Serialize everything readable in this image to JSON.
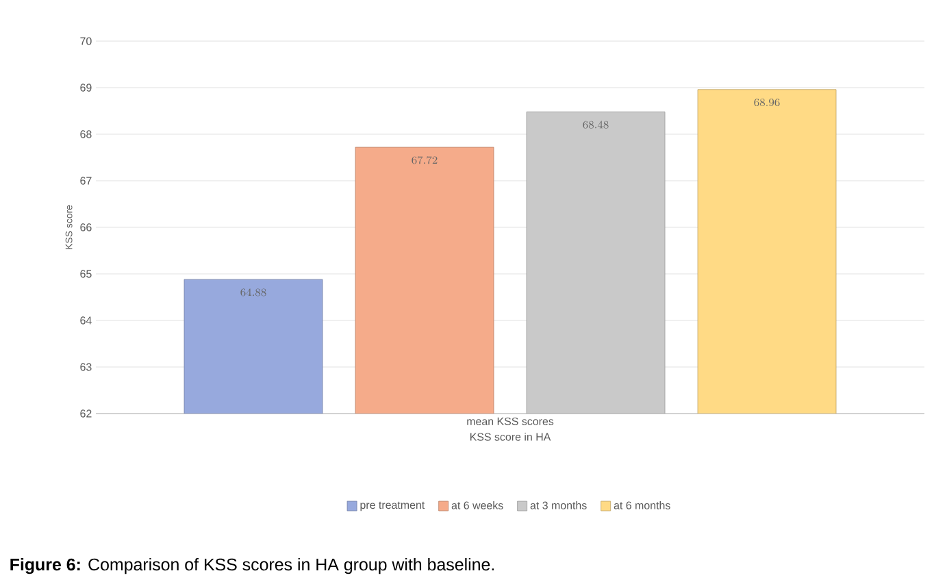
{
  "chart_data": {
    "type": "bar",
    "categories": [
      "mean KSS scores"
    ],
    "series": [
      {
        "name": "pre treatment",
        "color": "#97a9dd",
        "values": [
          64.88
        ]
      },
      {
        "name": "at 6 weeks",
        "color": "#f5ab8a",
        "values": [
          67.72
        ]
      },
      {
        "name": "at 3 months",
        "color": "#c9c9c9",
        "values": [
          68.48
        ]
      },
      {
        "name": "at 6 months",
        "color": "#ffda85",
        "values": [
          68.96
        ]
      }
    ],
    "xlabel": "KSS score in HA",
    "ylabel": "KSS score",
    "ylim": [
      62,
      70
    ],
    "yticks": [
      62,
      63,
      64,
      65,
      66,
      67,
      68,
      69,
      70
    ],
    "grid": "y",
    "legend": "bottom",
    "data_labels": true,
    "annotations": [
      "**Figure 6:** Comparison of KSS scores in HA group with baseline."
    ]
  }
}
